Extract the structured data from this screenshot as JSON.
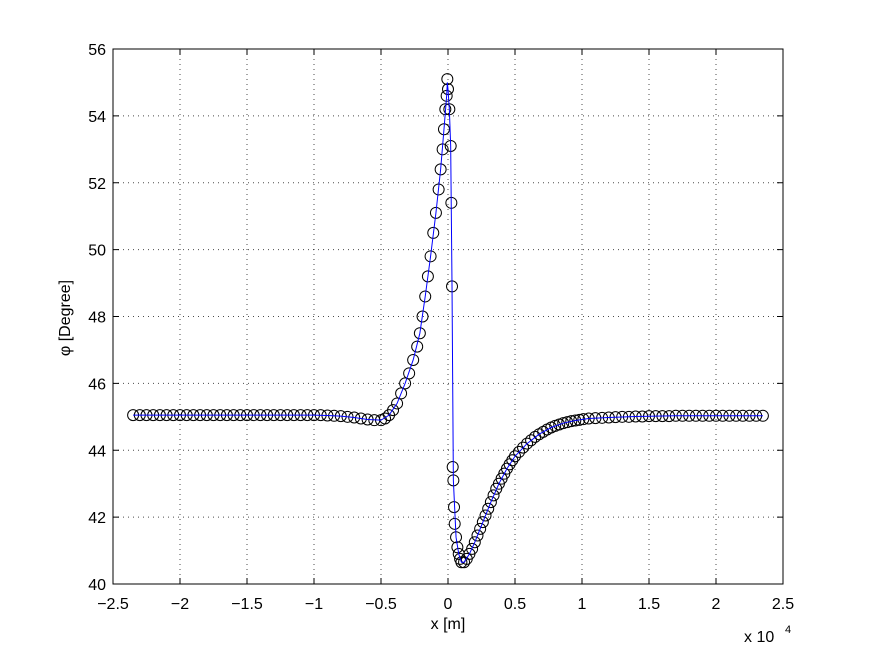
{
  "chart_data": {
    "type": "line",
    "xlabel": "x [m]",
    "ylabel": "φ [Degree]",
    "x_exponent_label": "x 10",
    "x_exponent_power": "4",
    "xlim": [
      -2.5,
      2.5
    ],
    "ylim": [
      40,
      56
    ],
    "x_scale_note": "x values in units of 10^4 m",
    "x_ticks": [
      -2.5,
      -2,
      -1.5,
      -1,
      -0.5,
      0,
      0.5,
      1,
      1.5,
      2,
      2.5
    ],
    "x_tick_labels": [
      "−2.5",
      "−2",
      "−1.5",
      "−1",
      "−0.5",
      "0",
      "0.5",
      "1",
      "1.5",
      "2",
      "2.5"
    ],
    "y_ticks": [
      40,
      42,
      44,
      46,
      48,
      50,
      52,
      54,
      56
    ],
    "y_tick_labels": [
      "40",
      "42",
      "44",
      "46",
      "48",
      "50",
      "52",
      "54",
      "56"
    ],
    "grid": true,
    "series": [
      {
        "style": "markers",
        "marker": "circle",
        "color": "#000000",
        "points": [
          [
            -2.35,
            45.05
          ],
          [
            -2.3,
            45.05
          ],
          [
            -2.25,
            45.05
          ],
          [
            -2.2,
            45.05
          ],
          [
            -2.15,
            45.05
          ],
          [
            -2.1,
            45.05
          ],
          [
            -2.05,
            45.05
          ],
          [
            -2.0,
            45.05
          ],
          [
            -1.95,
            45.05
          ],
          [
            -1.9,
            45.05
          ],
          [
            -1.85,
            45.05
          ],
          [
            -1.8,
            45.05
          ],
          [
            -1.75,
            45.05
          ],
          [
            -1.7,
            45.05
          ],
          [
            -1.65,
            45.05
          ],
          [
            -1.6,
            45.05
          ],
          [
            -1.55,
            45.05
          ],
          [
            -1.5,
            45.05
          ],
          [
            -1.45,
            45.05
          ],
          [
            -1.4,
            45.05
          ],
          [
            -1.35,
            45.05
          ],
          [
            -1.3,
            45.05
          ],
          [
            -1.25,
            45.05
          ],
          [
            -1.2,
            45.05
          ],
          [
            -1.15,
            45.05
          ],
          [
            -1.1,
            45.05
          ],
          [
            -1.05,
            45.05
          ],
          [
            -1.0,
            45.05
          ],
          [
            -0.95,
            45.05
          ],
          [
            -0.9,
            45.04
          ],
          [
            -0.85,
            45.03
          ],
          [
            -0.8,
            45.02
          ],
          [
            -0.75,
            45.0
          ],
          [
            -0.7,
            44.98
          ],
          [
            -0.65,
            44.95
          ],
          [
            -0.6,
            44.92
          ],
          [
            -0.55,
            44.9
          ],
          [
            -0.5,
            44.9
          ],
          [
            -0.47,
            44.95
          ],
          [
            -0.44,
            45.05
          ],
          [
            -0.41,
            45.2
          ],
          [
            -0.38,
            45.4
          ],
          [
            -0.35,
            45.7
          ],
          [
            -0.32,
            46.0
          ],
          [
            -0.29,
            46.3
          ],
          [
            -0.26,
            46.7
          ],
          [
            -0.23,
            47.1
          ],
          [
            -0.21,
            47.5
          ],
          [
            -0.19,
            48.0
          ],
          [
            -0.17,
            48.6
          ],
          [
            -0.15,
            49.2
          ],
          [
            -0.13,
            49.8
          ],
          [
            -0.11,
            50.5
          ],
          [
            -0.09,
            51.1
          ],
          [
            -0.07,
            51.8
          ],
          [
            -0.055,
            52.4
          ],
          [
            -0.04,
            53.0
          ],
          [
            -0.03,
            53.6
          ],
          [
            -0.02,
            54.2
          ],
          [
            -0.01,
            54.6
          ],
          [
            -0.005,
            55.1
          ],
          [
            0.0,
            54.8
          ],
          [
            0.01,
            54.2
          ],
          [
            0.02,
            53.1
          ],
          [
            0.025,
            51.4
          ],
          [
            0.03,
            48.9
          ],
          [
            0.035,
            43.5
          ],
          [
            0.04,
            43.1
          ],
          [
            0.045,
            42.3
          ],
          [
            0.05,
            41.8
          ],
          [
            0.06,
            41.4
          ],
          [
            0.07,
            41.1
          ],
          [
            0.08,
            40.9
          ],
          [
            0.09,
            40.75
          ],
          [
            0.1,
            40.65
          ],
          [
            0.12,
            40.65
          ],
          [
            0.14,
            40.75
          ],
          [
            0.16,
            40.9
          ],
          [
            0.18,
            41.05
          ],
          [
            0.2,
            41.25
          ],
          [
            0.22,
            41.45
          ],
          [
            0.24,
            41.65
          ],
          [
            0.26,
            41.85
          ],
          [
            0.28,
            42.05
          ],
          [
            0.3,
            42.25
          ],
          [
            0.32,
            42.45
          ],
          [
            0.34,
            42.65
          ],
          [
            0.36,
            42.85
          ],
          [
            0.38,
            43.0
          ],
          [
            0.4,
            43.15
          ],
          [
            0.42,
            43.3
          ],
          [
            0.44,
            43.45
          ],
          [
            0.46,
            43.58
          ],
          [
            0.48,
            43.7
          ],
          [
            0.5,
            43.82
          ],
          [
            0.53,
            43.95
          ],
          [
            0.56,
            44.08
          ],
          [
            0.59,
            44.2
          ],
          [
            0.62,
            44.3
          ],
          [
            0.65,
            44.4
          ],
          [
            0.68,
            44.48
          ],
          [
            0.71,
            44.55
          ],
          [
            0.74,
            44.62
          ],
          [
            0.77,
            44.68
          ],
          [
            0.8,
            44.73
          ],
          [
            0.83,
            44.77
          ],
          [
            0.86,
            44.81
          ],
          [
            0.89,
            44.84
          ],
          [
            0.92,
            44.87
          ],
          [
            0.95,
            44.89
          ],
          [
            0.98,
            44.91
          ],
          [
            1.01,
            44.93
          ],
          [
            1.05,
            44.95
          ],
          [
            1.1,
            44.96
          ],
          [
            1.15,
            44.97
          ],
          [
            1.2,
            44.98
          ],
          [
            1.25,
            44.99
          ],
          [
            1.3,
            45.0
          ],
          [
            1.35,
            45.0
          ],
          [
            1.4,
            45.01
          ],
          [
            1.45,
            45.01
          ],
          [
            1.5,
            45.02
          ],
          [
            1.55,
            45.02
          ],
          [
            1.6,
            45.02
          ],
          [
            1.65,
            45.02
          ],
          [
            1.7,
            45.03
          ],
          [
            1.75,
            45.03
          ],
          [
            1.8,
            45.03
          ],
          [
            1.85,
            45.03
          ],
          [
            1.9,
            45.03
          ],
          [
            1.95,
            45.03
          ],
          [
            2.0,
            45.03
          ],
          [
            2.05,
            45.03
          ],
          [
            2.1,
            45.03
          ],
          [
            2.15,
            45.03
          ],
          [
            2.2,
            45.03
          ],
          [
            2.25,
            45.03
          ],
          [
            2.3,
            45.03
          ],
          [
            2.35,
            45.03
          ]
        ]
      },
      {
        "style": "line",
        "color": "#0000ff",
        "points": [
          [
            -2.35,
            45.05
          ],
          [
            -1.5,
            45.05
          ],
          [
            -1.0,
            45.05
          ],
          [
            -0.9,
            45.04
          ],
          [
            -0.8,
            45.02
          ],
          [
            -0.7,
            44.98
          ],
          [
            -0.6,
            44.92
          ],
          [
            -0.5,
            44.9
          ],
          [
            -0.44,
            45.05
          ],
          [
            -0.38,
            45.4
          ],
          [
            -0.32,
            46.0
          ],
          [
            -0.26,
            46.7
          ],
          [
            -0.21,
            47.5
          ],
          [
            -0.17,
            48.6
          ],
          [
            -0.13,
            49.8
          ],
          [
            -0.09,
            51.1
          ],
          [
            -0.055,
            52.4
          ],
          [
            -0.03,
            53.6
          ],
          [
            -0.01,
            54.6
          ],
          [
            -0.005,
            55.0
          ],
          [
            0.0,
            54.8
          ],
          [
            0.01,
            54.2
          ],
          [
            0.02,
            53.1
          ],
          [
            0.03,
            48.9
          ],
          [
            0.04,
            43.1
          ],
          [
            0.06,
            41.4
          ],
          [
            0.08,
            40.9
          ],
          [
            0.1,
            40.65
          ],
          [
            0.12,
            40.65
          ],
          [
            0.16,
            40.9
          ],
          [
            0.2,
            41.25
          ],
          [
            0.26,
            41.85
          ],
          [
            0.32,
            42.45
          ],
          [
            0.38,
            43.0
          ],
          [
            0.44,
            43.45
          ],
          [
            0.5,
            43.82
          ],
          [
            0.59,
            44.2
          ],
          [
            0.68,
            44.48
          ],
          [
            0.77,
            44.68
          ],
          [
            0.86,
            44.81
          ],
          [
            0.95,
            44.89
          ],
          [
            1.05,
            44.95
          ],
          [
            1.2,
            44.98
          ],
          [
            1.4,
            45.01
          ],
          [
            1.7,
            45.03
          ],
          [
            2.0,
            45.03
          ],
          [
            2.35,
            45.03
          ]
        ]
      }
    ]
  }
}
